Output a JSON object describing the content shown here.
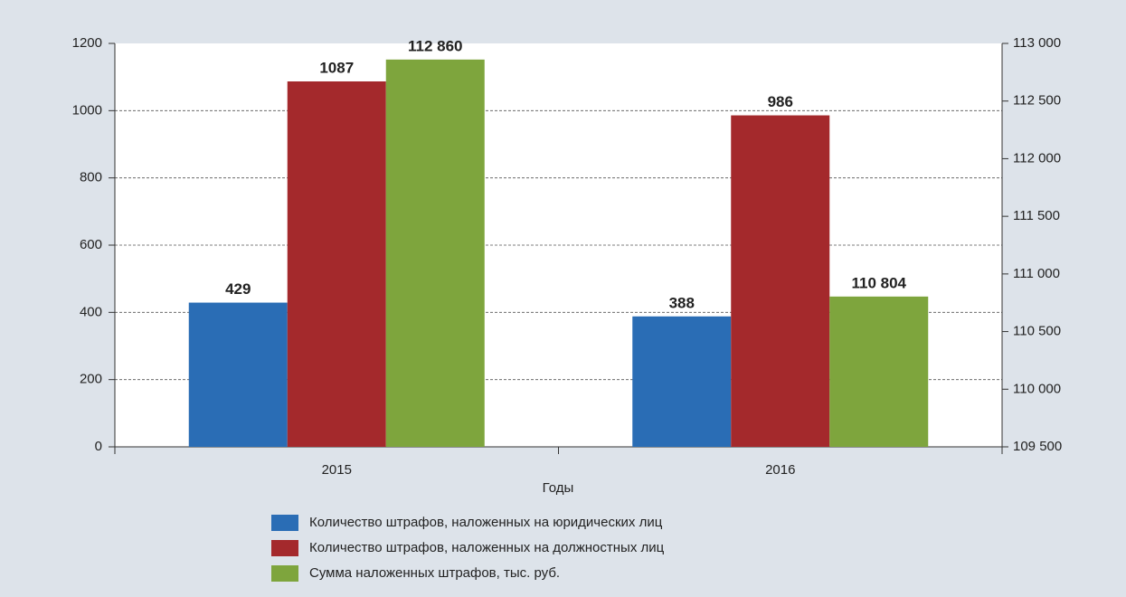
{
  "chart_data": {
    "type": "bar",
    "x_label": "Годы",
    "categories": [
      "2015",
      "2016"
    ],
    "series": [
      {
        "name": "Количество штрафов, наложенных на юридических лиц",
        "color": "#2a6db5",
        "values": [
          429,
          388
        ]
      },
      {
        "name": "Количество штрафов, наложенных на должностных лиц",
        "color": "#a4292c",
        "values": [
          1087,
          986
        ]
      },
      {
        "name": "Сумма наложенных штрафов, тыс. руб.",
        "color": "#7ea53d",
        "axis": "y2",
        "values": [
          112860,
          110804
        ],
        "value_labels": [
          "112 860",
          "110 804"
        ]
      }
    ],
    "ylim": [
      0,
      1200
    ],
    "yticks": [
      0,
      200,
      400,
      600,
      800,
      1000,
      1200
    ],
    "y2lim": [
      109500,
      113000
    ],
    "y2ticks": [
      {
        "value": 109500,
        "label": "109 500"
      },
      {
        "value": 110000,
        "label": "110 000"
      },
      {
        "value": 110500,
        "label": "110 500"
      },
      {
        "value": 111000,
        "label": "111 000"
      },
      {
        "value": 111500,
        "label": "111 500"
      },
      {
        "value": 112000,
        "label": "112 000"
      },
      {
        "value": 112500,
        "label": "112 500"
      },
      {
        "value": 113000,
        "label": "113 000"
      }
    ],
    "grid": true
  }
}
